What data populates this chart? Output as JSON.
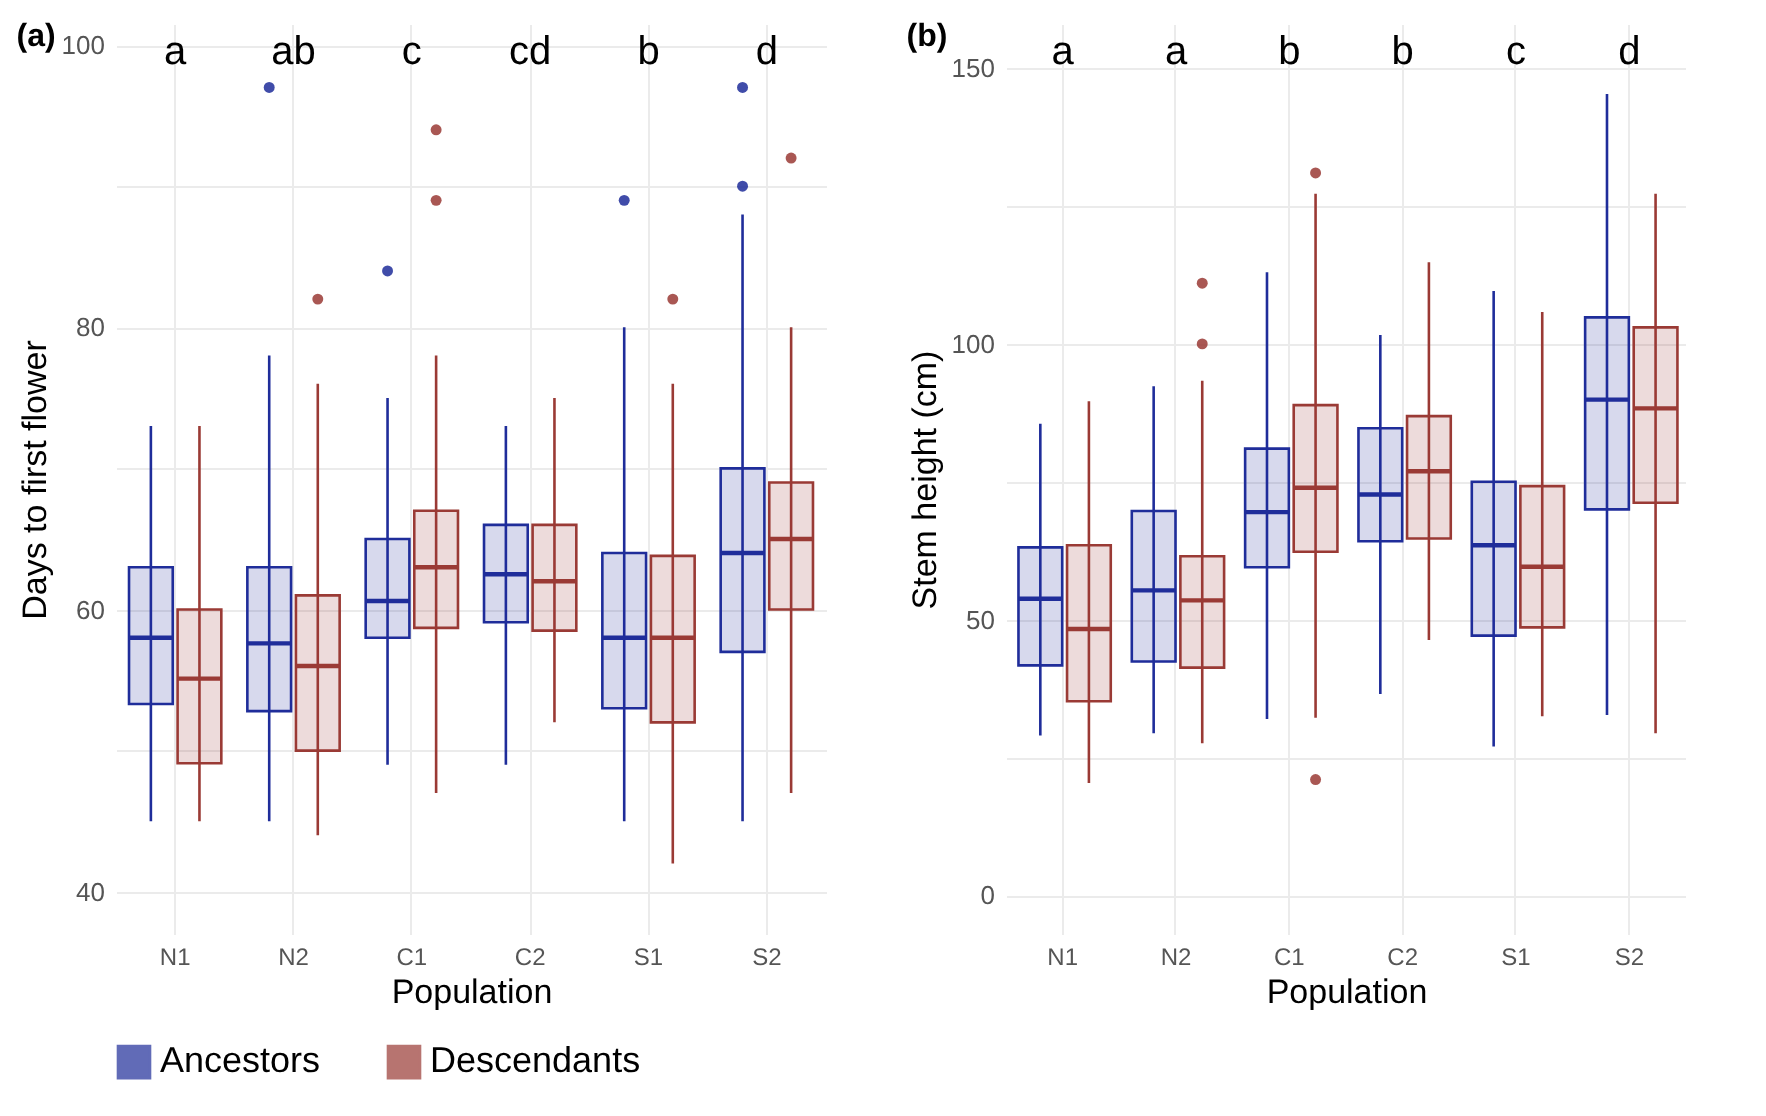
{
  "chart_data": [
    {
      "type": "box",
      "title": "(a)",
      "xlabel": "Population",
      "ylabel": "Days to first flower",
      "categories": [
        "N1",
        "N2",
        "C1",
        "C2",
        "S1",
        "S2"
      ],
      "ylim": [
        37,
        101.5
      ],
      "yticks": [
        40,
        {
          "value": 50,
          "label": null
        },
        60,
        {
          "value": 70,
          "label": null
        },
        80,
        {
          "value": 90,
          "label": null
        },
        100
      ],
      "grid": true,
      "legend": "bottom",
      "annotations": [
        "a",
        "ab",
        "c",
        "cd",
        "b",
        "d"
      ],
      "series": [
        {
          "name": "Ancestors",
          "color": "#1f2d9a",
          "boxes": [
            {
              "low": 45,
              "q1": 53.3,
              "median": 58,
              "q3": 63,
              "high": 73
            },
            {
              "low": 45,
              "q1": 52.8,
              "median": 57.6,
              "q3": 63,
              "high": 78,
              "outliers": [
                97
              ]
            },
            {
              "low": 49,
              "q1": 58,
              "median": 60.6,
              "q3": 65,
              "high": 75,
              "outliers": [
                84
              ]
            },
            {
              "low": 49,
              "q1": 59.1,
              "median": 62.5,
              "q3": 66,
              "high": 73
            },
            {
              "low": 45,
              "q1": 53,
              "median": 58,
              "q3": 64,
              "high": 80,
              "outliers": [
                89
              ]
            },
            {
              "low": 45,
              "q1": 57,
              "median": 64,
              "q3": 70,
              "high": 88,
              "outliers": [
                90,
                97
              ]
            }
          ]
        },
        {
          "name": "Descendants",
          "color": "#9a3a35",
          "boxes": [
            {
              "low": 45,
              "q1": 49.1,
              "median": 55.1,
              "q3": 60,
              "high": 73
            },
            {
              "low": 44,
              "q1": 50,
              "median": 56,
              "q3": 61,
              "high": 76,
              "outliers": [
                82
              ]
            },
            {
              "low": 47,
              "q1": 58.7,
              "median": 63,
              "q3": 67,
              "high": 78,
              "outliers": [
                89,
                94
              ]
            },
            {
              "low": 52,
              "q1": 58.5,
              "median": 62,
              "q3": 66,
              "high": 75
            },
            {
              "low": 42,
              "q1": 52,
              "median": 58,
              "q3": 63.8,
              "high": 76,
              "outliers": [
                82
              ]
            },
            {
              "low": 47,
              "q1": 60,
              "median": 65,
              "q3": 69,
              "high": 80,
              "outliers": [
                92
              ]
            }
          ]
        }
      ]
    },
    {
      "type": "box",
      "title": "(b)",
      "xlabel": "Population",
      "ylabel": "Stem height (cm)",
      "categories": [
        "N1",
        "N2",
        "C1",
        "C2",
        "S1",
        "S2"
      ],
      "ylim": [
        -7,
        158
      ],
      "yticks": [
        0,
        {
          "value": 25,
          "label": null
        },
        50,
        {
          "value": 75,
          "label": null
        },
        100,
        {
          "value": 125,
          "label": null
        },
        150
      ],
      "grid": true,
      "legend": "bottom",
      "annotations": [
        "a",
        "a",
        "b",
        "b",
        "c",
        "d"
      ],
      "series": [
        {
          "name": "Ancestors",
          "color": "#1f2d9a",
          "boxes": [
            {
              "low": 29,
              "q1": 41.7,
              "median": 53.8,
              "q3": 63.1,
              "high": 85.5
            },
            {
              "low": 29.4,
              "q1": 42.4,
              "median": 55.3,
              "q3": 69.7,
              "high": 92.3
            },
            {
              "low": 32,
              "q1": 59.5,
              "median": 69.5,
              "q3": 81,
              "high": 113
            },
            {
              "low": 36.5,
              "q1": 64.2,
              "median": 72.7,
              "q3": 84.7,
              "high": 101.6
            },
            {
              "low": 27,
              "q1": 47.1,
              "median": 63.5,
              "q3": 75,
              "high": 109.6
            },
            {
              "low": 32.7,
              "q1": 70,
              "median": 89.9,
              "q3": 104.8,
              "high": 145.3
            }
          ]
        },
        {
          "name": "Descendants",
          "color": "#9a3a35",
          "boxes": [
            {
              "low": 20.4,
              "q1": 35.2,
              "median": 48.3,
              "q3": 63.5,
              "high": 89.6
            },
            {
              "low": 27.6,
              "q1": 41.3,
              "median": 53.5,
              "q3": 61.5,
              "high": 93.3,
              "outliers": [
                100,
                111
              ]
            },
            {
              "low": 32.2,
              "q1": 62.3,
              "median": 73.9,
              "q3": 88.9,
              "high": 127.2,
              "outliers": [
                131,
                21
              ]
            },
            {
              "low": 46.3,
              "q1": 64.7,
              "median": 76.9,
              "q3": 86.9,
              "high": 114.8
            },
            {
              "low": 32.5,
              "q1": 48.6,
              "median": 59.6,
              "q3": 74.2,
              "high": 105.8
            },
            {
              "low": 29.4,
              "q1": 71.2,
              "median": 88.3,
              "q3": 103,
              "high": 127.2
            }
          ]
        }
      ]
    }
  ]
}
